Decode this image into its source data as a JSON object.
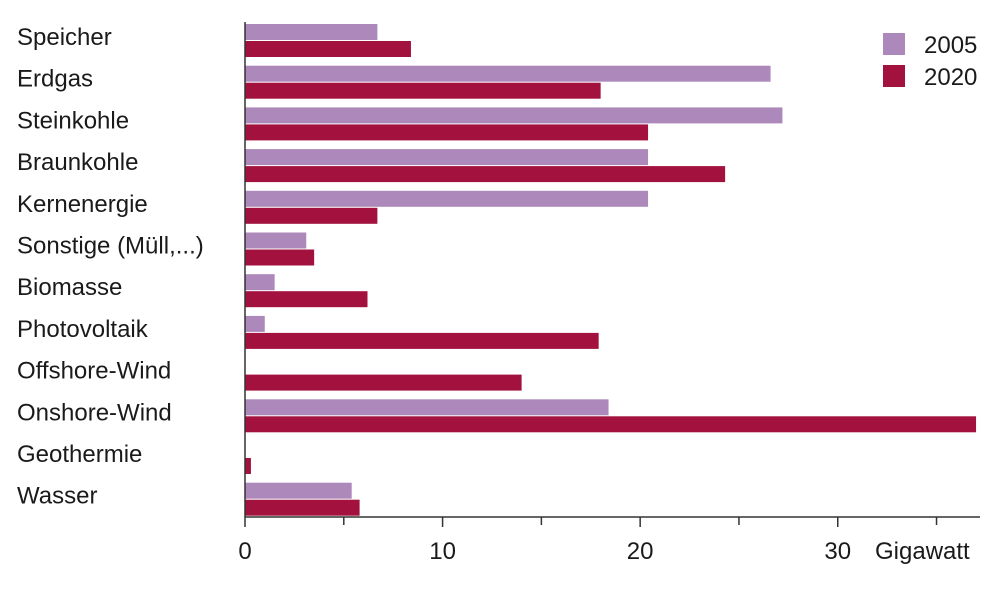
{
  "chart_data": {
    "type": "bar",
    "orientation": "horizontal",
    "categories": [
      "Speicher",
      "Erdgas",
      "Steinkohle",
      "Braunkohle",
      "Kernenergie",
      "Sonstige (Müll,...)",
      "Biomasse",
      "Photovoltaik",
      "Offshore-Wind",
      "Onshore-Wind",
      "Geothermie",
      "Wasser"
    ],
    "series": [
      {
        "name": "2005",
        "color": "#ad88bb",
        "values": [
          6.7,
          26.6,
          27.2,
          20.4,
          20.4,
          3.1,
          1.5,
          1.0,
          0,
          18.4,
          0,
          5.4
        ]
      },
      {
        "name": "2020",
        "color": "#a3123f",
        "values": [
          8.4,
          18.0,
          20.4,
          24.3,
          6.7,
          3.5,
          6.2,
          17.9,
          14.0,
          37.0,
          0.3,
          5.8
        ]
      }
    ],
    "xlim": [
      0,
      37.2
    ],
    "xticks": [
      0,
      10,
      20,
      30
    ],
    "minor_ticks": [
      5,
      15,
      25,
      35
    ],
    "xunit": "Gigawatt",
    "legend_position": "top-right",
    "grid": false
  }
}
